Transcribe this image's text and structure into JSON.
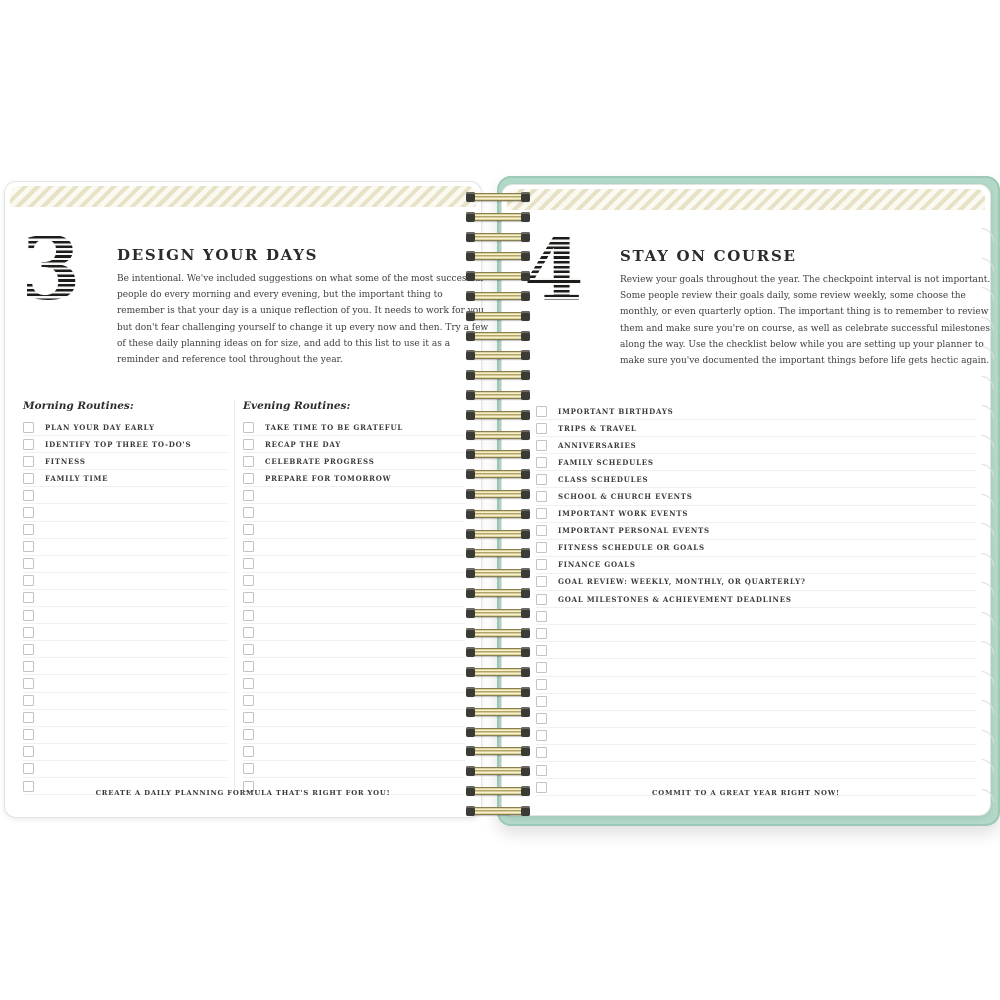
{
  "left_page": {
    "chapter_number": "3",
    "title": "DESIGN YOUR DAYS",
    "intro": "Be intentional. We've included suggestions on what some of the most successful people do every morning and every evening, but the important thing to remember is that your day is a unique reflection of you. It needs to work for you, but don't fear challenging yourself to change it up every now and then. Try a few of these daily planning ideas on for size, and add to this list to use it as a reminder and reference tool throughout the year.",
    "columns": [
      {
        "heading": "Morning Routines:",
        "items": [
          "PLAN YOUR DAY EARLY",
          "IDENTIFY TOP THREE TO-DO'S",
          "FITNESS",
          "FAMILY TIME"
        ],
        "empty_rows": 18
      },
      {
        "heading": "Evening Routines:",
        "items": [
          "TAKE TIME TO BE GRATEFUL",
          "RECAP THE DAY",
          "CELEBRATE PROGRESS",
          "PREPARE FOR TOMORROW"
        ],
        "empty_rows": 18
      }
    ],
    "footer": "CREATE A DAILY PLANNING FORMULA THAT'S RIGHT FOR YOU!"
  },
  "right_page": {
    "chapter_number": "4",
    "title": "STAY ON COURSE",
    "intro": "Review your goals throughout the year. The checkpoint interval is not important. Some people review their goals daily, some review weekly, some choose the monthly, or even quarterly option. The important thing is to remember to review them and make sure you're on course, as well as celebrate successful milestones along the way. Use the checklist below while you are setting up your planner to make sure you've documented the important things before life gets hectic again.",
    "checklist": {
      "items": [
        "IMPORTANT BIRTHDAYS",
        "TRIPS & TRAVEL",
        "ANNIVERSARIES",
        "FAMILY SCHEDULES",
        "CLASS SCHEDULES",
        "SCHOOL & CHURCH EVENTS",
        "IMPORTANT WORK EVENTS",
        "IMPORTANT PERSONAL EVENTS",
        "FITNESS SCHEDULE OR GOALS",
        "FINANCE GOALS",
        "GOAL REVIEW: WEEKLY, MONTHLY, OR QUARTERLY?",
        "GOAL MILESTONES & ACHIEVEMENT DEADLINES"
      ],
      "empty_rows": 11
    },
    "footer": "COMMIT TO A GREAT YEAR RIGHT NOW!"
  },
  "colors": {
    "cover_mint": "#b2d8c8",
    "stripe_cream": "#e7e2c5",
    "binding_gold": "#cfc288",
    "text_dark": "#2c2b29"
  }
}
